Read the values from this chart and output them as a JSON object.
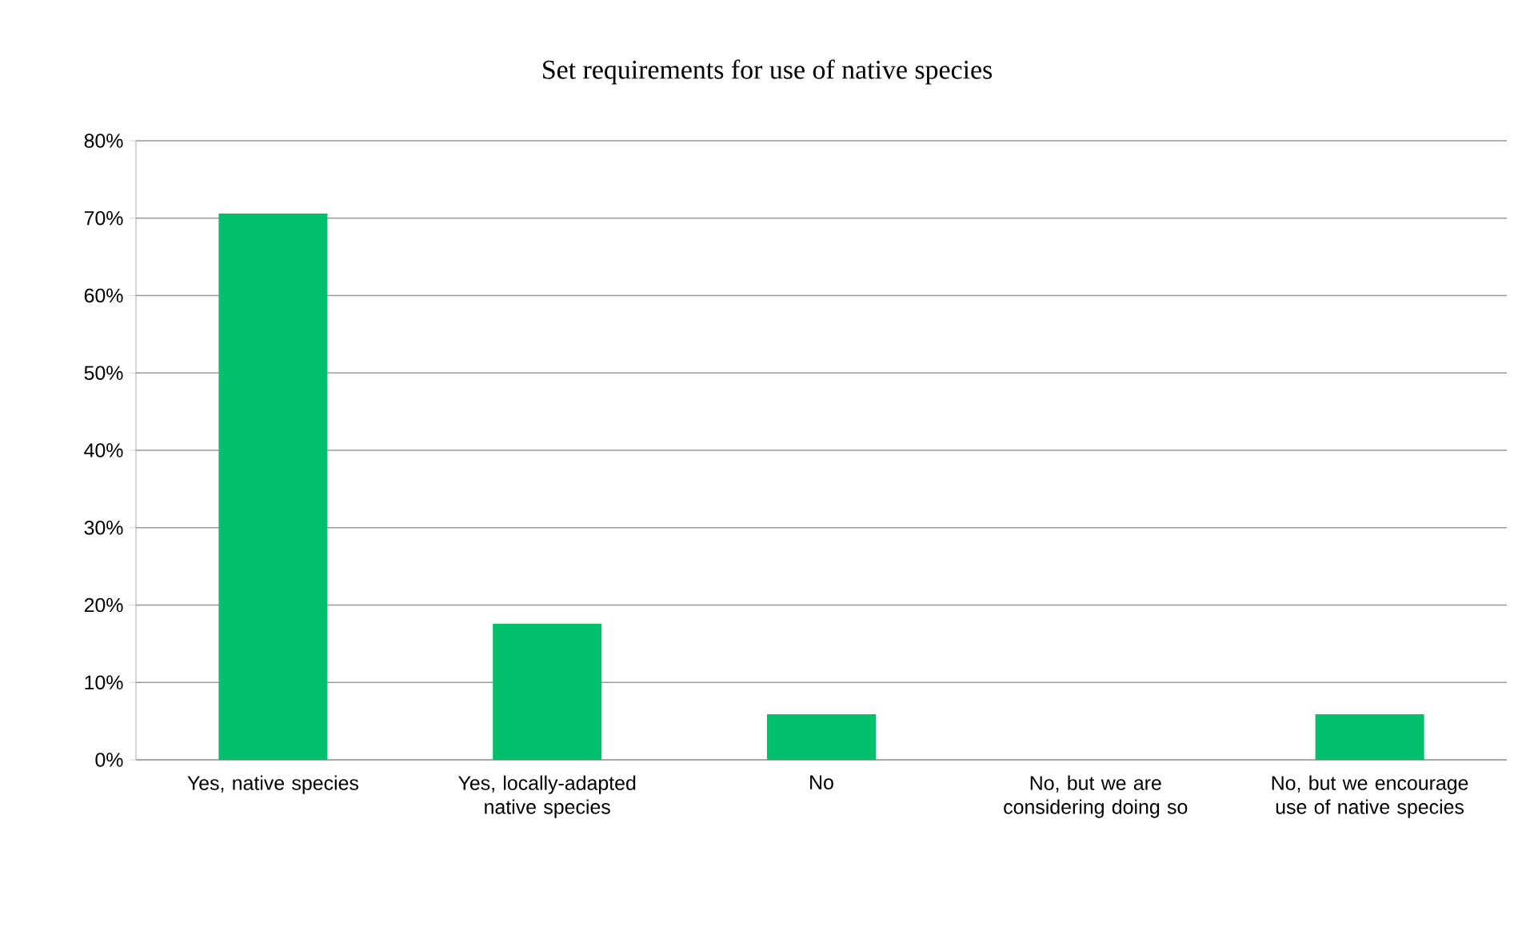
{
  "chart_data": {
    "type": "bar",
    "title": "Set requirements for use of native species",
    "categories": [
      "Yes, native species",
      "Yes, locally-adapted native species",
      "No",
      "No, but we are considering doing so",
      "No, but we encourage use of native species"
    ],
    "values": [
      70.6,
      17.6,
      5.9,
      0,
      5.9
    ],
    "color": "#00c06b",
    "ylim": [
      0,
      80
    ],
    "yticks": [
      {
        "value": 0,
        "label": "0%"
      },
      {
        "value": 10,
        "label": "10%"
      },
      {
        "value": 20,
        "label": "20%"
      },
      {
        "value": 30,
        "label": "30%"
      },
      {
        "value": 40,
        "label": "40%"
      },
      {
        "value": 50,
        "label": "50%"
      },
      {
        "value": 60,
        "label": "60%"
      },
      {
        "value": 70,
        "label": "70%"
      },
      {
        "value": 80,
        "label": "80%"
      }
    ],
    "grid": "y"
  }
}
